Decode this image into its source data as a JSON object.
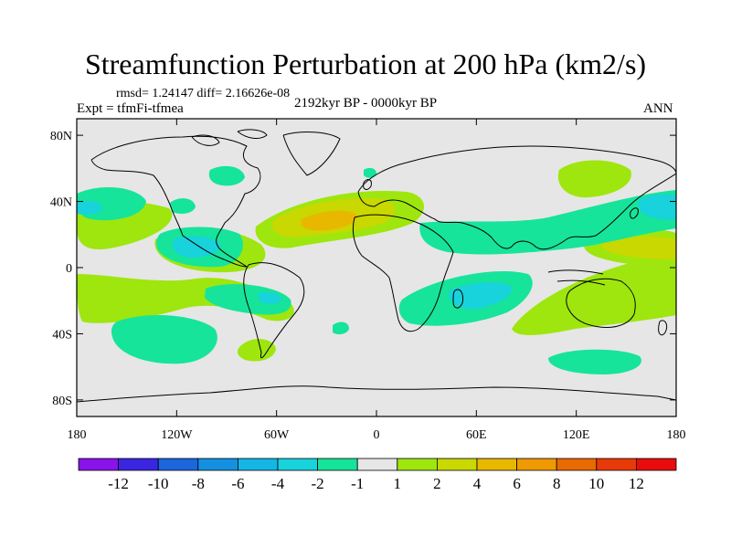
{
  "title": "Streamfunction Perturbation at 200 hPa (km2/s)",
  "stats": "rmsd= 1.24147 diff= 2.16626e-08",
  "experiment": "Expt = tfmFi-tfmea",
  "period": "2192kyr BP - 0000kyr BP",
  "season": "ANN",
  "axes": {
    "lat_labels": [
      "80N",
      "40N",
      "0",
      "40S",
      "80S"
    ],
    "lat_values": [
      80,
      40,
      0,
      -40,
      -80
    ],
    "lon_labels": [
      "180",
      "120W",
      "60W",
      "0",
      "60E",
      "120E",
      "180"
    ],
    "lon_values": [
      -180,
      -120,
      -60,
      0,
      60,
      120,
      180
    ]
  },
  "colorbar": {
    "labels": [
      "-12",
      "-10",
      "-8",
      "-6",
      "-4",
      "-2",
      "-1",
      "1",
      "2",
      "4",
      "6",
      "8",
      "10",
      "12"
    ],
    "colors": [
      "#8a12ea",
      "#3a26e0",
      "#1b66dc",
      "#1590e0",
      "#14b6e4",
      "#18d2dc",
      "#16e49a",
      "#e6e6e6",
      "#9ee60e",
      "#c8d800",
      "#e8b800",
      "#ee9a00",
      "#ea6a00",
      "#e83a08",
      "#e80c0c"
    ]
  },
  "background_color": "#e6e6e6"
}
